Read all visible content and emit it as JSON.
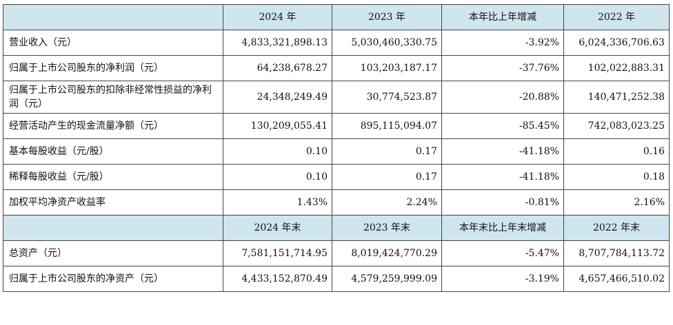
{
  "header1": {
    "blank": "",
    "cols": [
      "2024 年",
      "2023 年",
      "本年比上年增减",
      "2022 年"
    ]
  },
  "rows1": [
    {
      "label": "营业收入（元）",
      "v": [
        "4,833,321,898.13",
        "5,030,460,330.75",
        "-3.92%",
        "6,024,336,706.63"
      ]
    },
    {
      "label": "归属于上市公司股东的净利润（元）",
      "v": [
        "64,238,678.27",
        "103,203,187.17",
        "-37.76%",
        "102,022,883.31"
      ]
    },
    {
      "label": "归属于上市公司股东的扣除非经常性损益的净利润（元）",
      "v": [
        "24,348,249.49",
        "30,774,523.87",
        "-20.88%",
        "140,471,252.38"
      ]
    },
    {
      "label": "经营活动产生的现金流量净额（元）",
      "v": [
        "130,209,055.41",
        "895,115,094.07",
        "-85.45%",
        "742,083,023.25"
      ]
    },
    {
      "label": "基本每股收益（元/股）",
      "v": [
        "0.10",
        "0.17",
        "-41.18%",
        "0.16"
      ]
    },
    {
      "label": "稀释每股收益（元/股）",
      "v": [
        "0.10",
        "0.17",
        "-41.18%",
        "0.18"
      ]
    },
    {
      "label": "加权平均净资产收益率",
      "v": [
        "1.43%",
        "2.24%",
        "-0.81%",
        "2.16%"
      ]
    }
  ],
  "header2": {
    "blank": "",
    "cols": [
      "2024 年末",
      "2023 年末",
      "本年末比上年末增减",
      "2022 年末"
    ]
  },
  "rows2": [
    {
      "label": "总资产（元）",
      "v": [
        "7,581,151,714.95",
        "8,019,424,770.29",
        "-5.47%",
        "8,707,784,113.72"
      ]
    },
    {
      "label": "归属于上市公司股东的净资产（元）",
      "v": [
        "4,433,152,870.49",
        "4,579,259,999.09",
        "-3.19%",
        "4,657,466,510.02"
      ]
    }
  ]
}
